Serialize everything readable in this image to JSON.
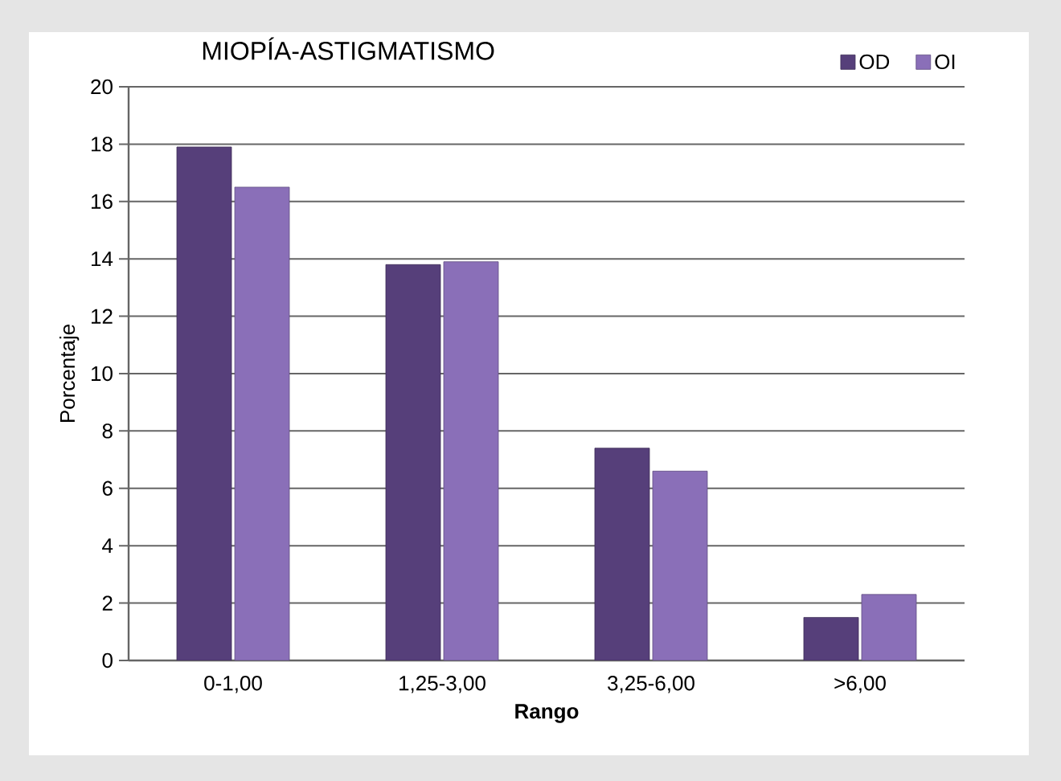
{
  "chart_data": {
    "type": "bar",
    "title": "MIOPÍA-ASTIGMATISMO",
    "xlabel": "Rango",
    "ylabel": "Porcentaje",
    "categories": [
      "0-1,00",
      "1,25-3,00",
      "3,25-6,00",
      ">6,00"
    ],
    "series": [
      {
        "name": "OD",
        "color": "#563f7a",
        "values": [
          17.9,
          13.8,
          7.4,
          1.5
        ]
      },
      {
        "name": "OI",
        "color": "#8a6fb8",
        "values": [
          16.5,
          13.9,
          6.6,
          2.3
        ]
      }
    ],
    "ylim": [
      0,
      20
    ],
    "yticks": [
      0,
      2,
      4,
      6,
      8,
      10,
      12,
      14,
      16,
      18,
      20
    ],
    "grid": "y",
    "legend": "top right"
  }
}
